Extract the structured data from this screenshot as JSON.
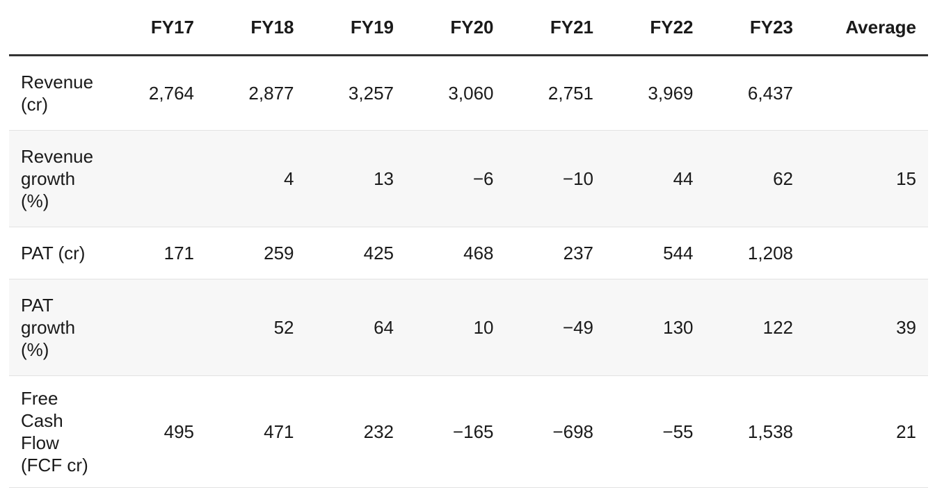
{
  "header": {
    "columns": [
      "FY17",
      "FY18",
      "FY19",
      "FY20",
      "FY21",
      "FY22",
      "FY23",
      "Average"
    ]
  },
  "rows": [
    {
      "label": "Revenue (cr)",
      "cells": [
        "2,764",
        "2,877",
        "3,257",
        "3,060",
        "2,751",
        "3,969",
        "6,437",
        null
      ]
    },
    {
      "label": "Revenue growth (%)",
      "cells": [
        null,
        "4",
        "13",
        "−6",
        "−10",
        "44",
        "62",
        "15"
      ]
    },
    {
      "label": "PAT (cr)",
      "cells": [
        "171",
        "259",
        "425",
        "468",
        "237",
        "544",
        "1,208",
        null
      ]
    },
    {
      "label": "PAT growth (%)",
      "cells": [
        null,
        "52",
        "64",
        "10",
        "−49",
        "130",
        "122",
        "39"
      ]
    },
    {
      "label": "Free Cash Flow (FCF cr)",
      "cells": [
        "495",
        "471",
        "232",
        "−165",
        "−698",
        "−55",
        "1,538",
        "21"
      ]
    }
  ]
}
